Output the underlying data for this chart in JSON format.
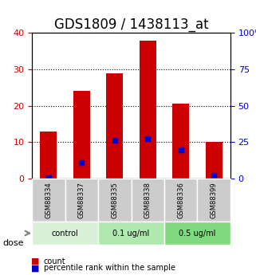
{
  "title": "GDS1809 / 1438113_at",
  "samples": [
    "GSM88334",
    "GSM88337",
    "GSM88335",
    "GSM88338",
    "GSM88336",
    "GSM88399"
  ],
  "bar_heights": [
    13,
    24,
    29,
    38,
    20.5,
    10
  ],
  "blue_values": [
    0.8,
    11,
    26.5,
    27.5,
    20,
    2
  ],
  "left_ylim": [
    0,
    40
  ],
  "right_ylim": [
    0,
    100
  ],
  "left_yticks": [
    0,
    10,
    20,
    30,
    40
  ],
  "right_yticks": [
    0,
    25,
    50,
    75,
    100
  ],
  "right_yticklabels": [
    "0",
    "25",
    "50",
    "75",
    "100%"
  ],
  "bar_color": "#cc0000",
  "blue_color": "#0000cc",
  "title_fontsize": 12,
  "groups": [
    {
      "label": "control",
      "indices": [
        0,
        1
      ],
      "color": "#d8f0d8"
    },
    {
      "label": "0.1 ug/ml",
      "indices": [
        2,
        3
      ],
      "color": "#b0e8b0"
    },
    {
      "label": "0.5 ug/ml",
      "indices": [
        4,
        5
      ],
      "color": "#80d880"
    }
  ],
  "xlabel_color": "#333333",
  "dose_label": "dose",
  "legend_count": "count",
  "legend_percentile": "percentile rank within the sample",
  "bg_plot": "#ffffff",
  "grid_color": "#000000",
  "tick_label_area_color": "#cccccc",
  "bar_width": 0.5
}
